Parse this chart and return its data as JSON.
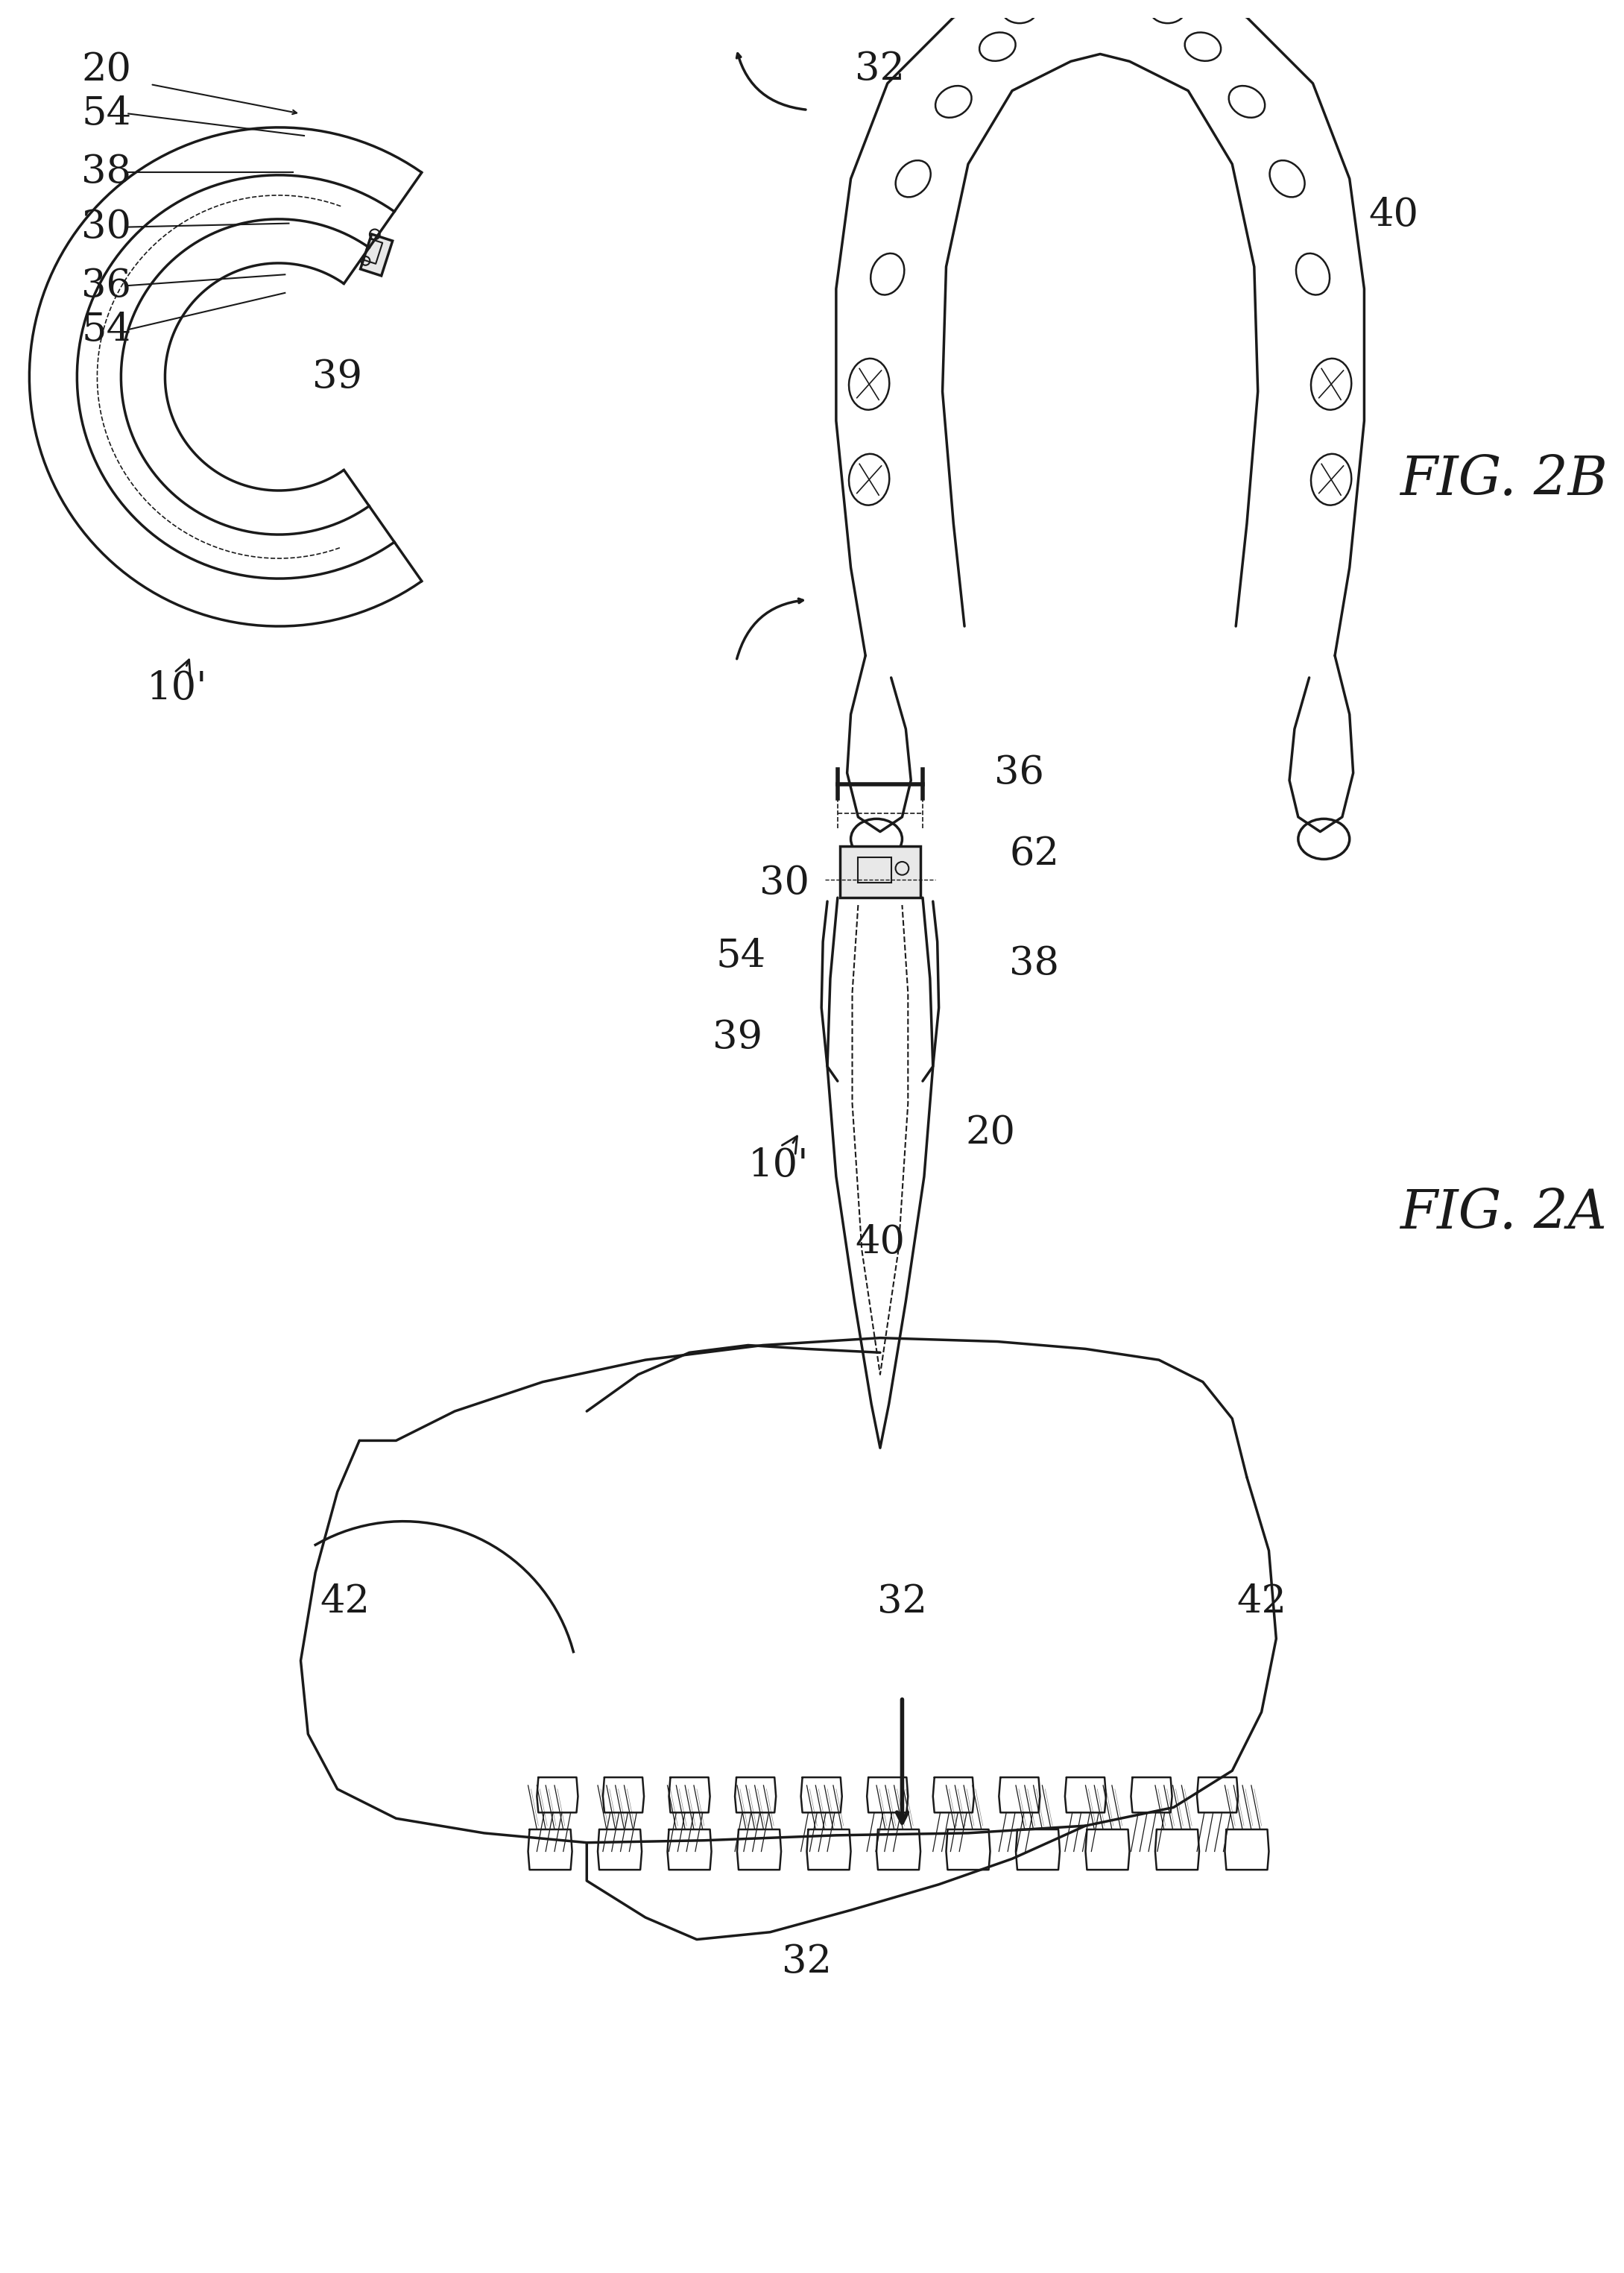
{
  "fig_labels": {
    "fig2A": "FIG. 2A",
    "fig2B": "FIG. 2B"
  },
  "ref": {
    "10p": "10'",
    "20": "20",
    "30": "30",
    "32": "32",
    "36": "36",
    "38": "38",
    "39": "39",
    "40": "40",
    "42": "42",
    "54": "54",
    "62": "62"
  },
  "bg": "#ffffff",
  "lc": "#1a1a1a",
  "lw": 2.5,
  "fs": 38,
  "fs_fig": 52
}
